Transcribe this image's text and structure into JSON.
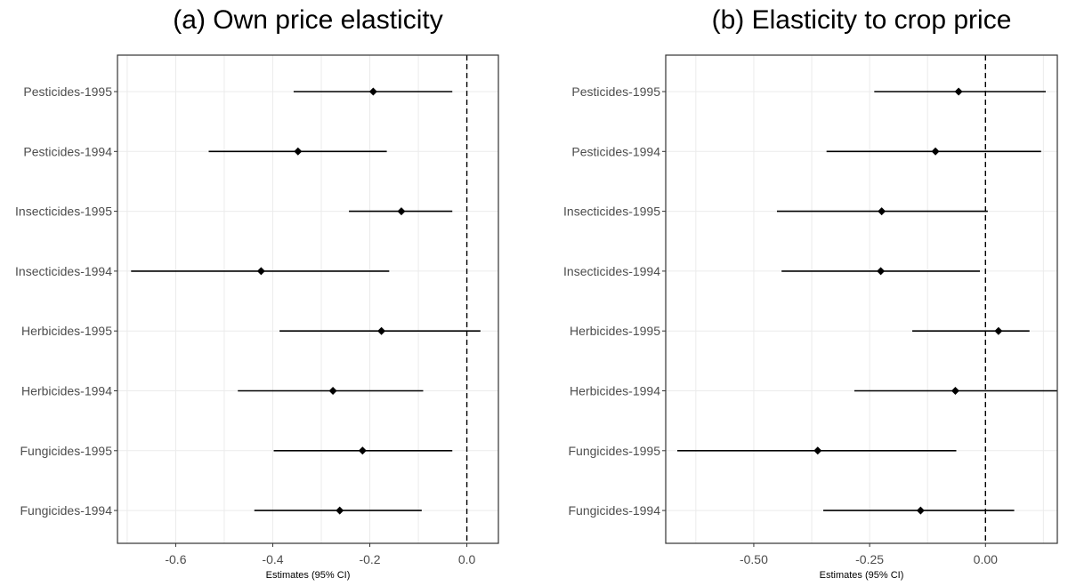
{
  "chart_data": [
    {
      "type": "forest",
      "title": "(a) Own price elasticity",
      "xlabel": "Estimates (95% CI)",
      "xlim": [
        -0.72,
        0.065
      ],
      "xticks": [
        -0.6,
        -0.4,
        -0.2,
        0.0
      ],
      "xtick_labels": [
        "-0.6",
        "-0.4",
        "-0.2",
        "0.0"
      ],
      "reference_line": 0,
      "categories": [
        "Pesticides-1995",
        "Pesticides-1994",
        "Insecticides-1995",
        "Insecticides-1994",
        "Herbicides-1995",
        "Herbicides-1994",
        "Fungicides-1995",
        "Fungicides-1994"
      ],
      "estimates": [
        -0.193,
        -0.348,
        -0.135,
        -0.424,
        -0.176,
        -0.276,
        -0.215,
        -0.262
      ],
      "ci_low": [
        -0.357,
        -0.532,
        -0.243,
        -0.692,
        -0.386,
        -0.472,
        -0.398,
        -0.438
      ],
      "ci_high": [
        -0.03,
        -0.165,
        -0.03,
        -0.16,
        0.028,
        -0.09,
        -0.03,
        -0.093
      ]
    },
    {
      "type": "forest",
      "title": "(b) Elasticity to crop price",
      "xlabel": "Estimates (95% CI)",
      "xlim": [
        -0.69,
        0.155
      ],
      "xticks": [
        -0.5,
        -0.25,
        0.0
      ],
      "xtick_labels": [
        "-0.50",
        "-0.25",
        "0.00"
      ],
      "reference_line": 0,
      "categories": [
        "Pesticides-1995",
        "Pesticides-1994",
        "Insecticides-1995",
        "Insecticides-1994",
        "Herbicides-1995",
        "Herbicides-1994",
        "Fungicides-1995",
        "Fungicides-1994"
      ],
      "estimates": [
        -0.058,
        -0.108,
        -0.224,
        -0.226,
        0.028,
        -0.065,
        -0.362,
        -0.14
      ],
      "ci_low": [
        -0.24,
        -0.343,
        -0.45,
        -0.44,
        -0.158,
        -0.283,
        -0.665,
        -0.35
      ],
      "ci_high": [
        0.13,
        0.12,
        0.005,
        -0.012,
        0.095,
        0.155,
        -0.063,
        0.062
      ]
    }
  ]
}
